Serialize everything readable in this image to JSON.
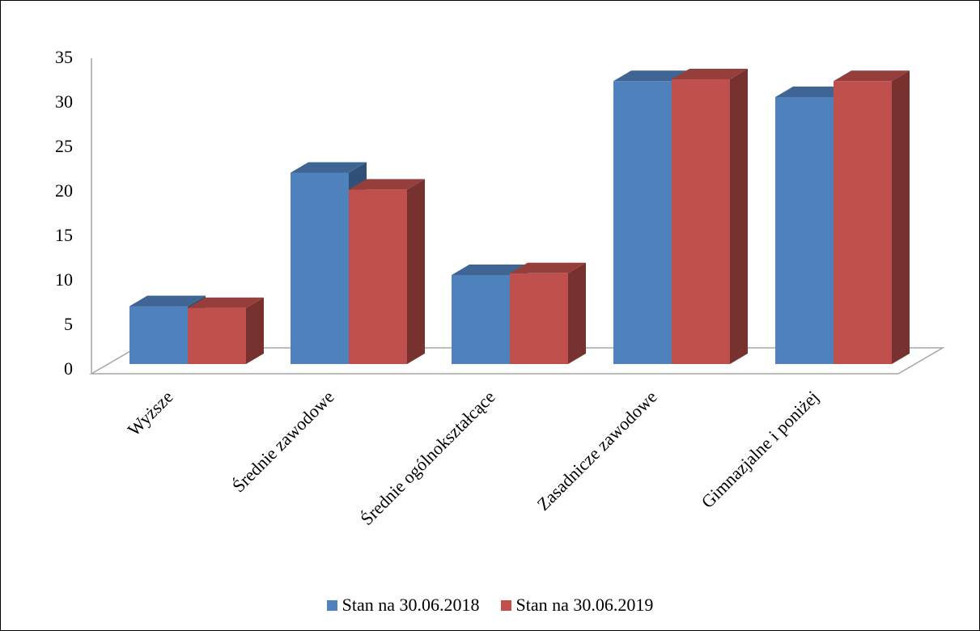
{
  "chart_data": {
    "type": "bar",
    "categories": [
      "Wyższe",
      "Średnie zawodowe",
      "Średnie ogólnokształcące",
      "Zasadnicze zawodowe",
      "Gimnazjalne  i poniżej"
    ],
    "series": [
      {
        "name": "Stan na 30.06.2018",
        "values": [
          6.5,
          21.5,
          10,
          31.8,
          30
        ],
        "color": "#4F81BD"
      },
      {
        "name": "Stan na 30.06.2019",
        "values": [
          6.3,
          19.6,
          10.2,
          32,
          31.8
        ],
        "color": "#C0504D"
      }
    ],
    "yticks": [
      "0",
      "5",
      "10",
      "15",
      "20",
      "25",
      "30",
      "35"
    ],
    "ylim": [
      0,
      35
    ],
    "style": "3d-clustered-column",
    "grid": false,
    "legend": "bottom"
  }
}
